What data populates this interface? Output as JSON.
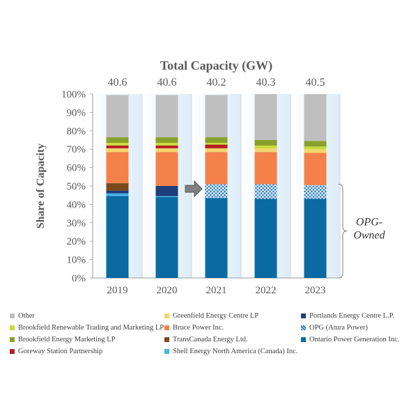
{
  "chart_data": {
    "type": "bar",
    "stacked": true,
    "normalized": true,
    "title": "Total Capacity (GW)",
    "ylabel": "Share of Capacity",
    "xlabel": "",
    "ylim": [
      0,
      100
    ],
    "yticks": [
      "0%",
      "10%",
      "20%",
      "30%",
      "40%",
      "50%",
      "60%",
      "70%",
      "80%",
      "90%",
      "100%"
    ],
    "categories": [
      "2019",
      "2020",
      "2021",
      "2022",
      "2023"
    ],
    "totals": [
      "40.6",
      "40.6",
      "40.2",
      "40.3",
      "40.5"
    ],
    "series": [
      {
        "name": "Ontario Power Generation Inc.",
        "color": "#0a6aa1",
        "pattern": false,
        "values": [
          44.5,
          44.0,
          43.5,
          43.0,
          43.0
        ]
      },
      {
        "name": "Shell Energy North America (Canada) Inc.",
        "color": "#49b4e6",
        "pattern": false,
        "values": [
          1.5,
          0.5,
          0.0,
          0.0,
          0.0
        ]
      },
      {
        "name": "Portlands Energy Centre L.P.",
        "color": "#1f3e7c",
        "pattern": false,
        "values": [
          1.5,
          5.5,
          0.0,
          0.0,
          0.0
        ]
      },
      {
        "name": "OPG (Atura Power)",
        "color": "#2a7bbd",
        "pattern": true,
        "values": [
          0.0,
          0.0,
          7.5,
          8.0,
          7.5
        ]
      },
      {
        "name": "TransCanada Energy Ltd.",
        "color": "#7b4a1a",
        "pattern": false,
        "values": [
          4.0,
          0.0,
          0.0,
          0.0,
          0.0
        ]
      },
      {
        "name": "Bruce Power Inc.",
        "color": "#f4814a",
        "pattern": false,
        "values": [
          17.0,
          18.5,
          17.5,
          17.5,
          17.5
        ]
      },
      {
        "name": "Greenfield Energy Centre LP",
        "color": "#f2d66e",
        "pattern": false,
        "values": [
          2.0,
          2.0,
          2.0,
          2.0,
          2.0
        ]
      },
      {
        "name": "Goreway Station Partnership",
        "color": "#b41f24",
        "pattern": false,
        "values": [
          1.5,
          1.5,
          2.0,
          0.0,
          0.0
        ]
      },
      {
        "name": "Brookfield Renewable Trading and Marketing LP",
        "color": "#c9da3a",
        "pattern": false,
        "values": [
          1.5,
          1.5,
          1.0,
          1.5,
          1.5
        ]
      },
      {
        "name": "Brookfield Energy Marketing LP",
        "color": "#8aa02c",
        "pattern": false,
        "values": [
          3.0,
          3.0,
          3.0,
          3.0,
          3.0
        ]
      },
      {
        "name": "Other",
        "color": "#bfbfbf",
        "pattern": false,
        "values": [
          23.0,
          23.0,
          23.0,
          25.0,
          25.5
        ]
      }
    ],
    "legend_order": [
      "Other",
      "Greenfield Energy Centre LP",
      "Portlands Energy Centre L.P.",
      "Brookfield Renewable Trading and Marketing LP",
      "Bruce Power Inc.",
      "OPG (Atura Power)",
      "Brookfield Energy Marketing LP",
      "TransCanada Energy Ltd.",
      "Ontario Power Generation Inc.",
      "Goreway Station Partnership",
      "Shell Energy North America (Canada) Inc."
    ],
    "legend_position": "bottom",
    "annotations": {
      "bracket_label": "OPG-\nOwned",
      "bracket_range": [
        0,
        51
      ],
      "arrow_between": [
        "2020",
        "2021"
      ]
    }
  }
}
